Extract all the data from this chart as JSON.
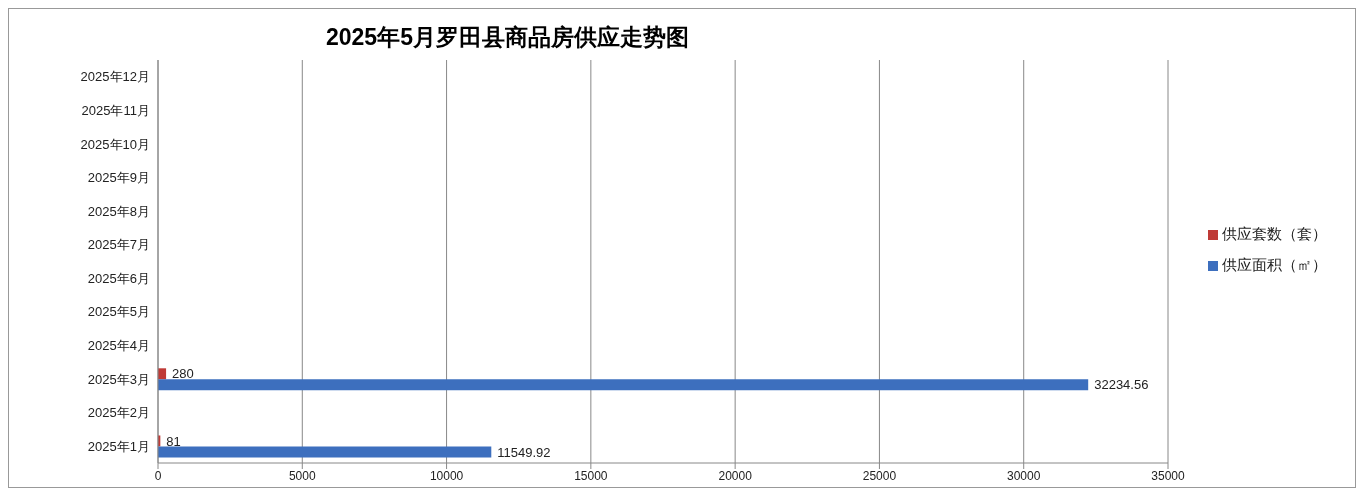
{
  "chart_data": {
    "type": "bar",
    "orientation": "horizontal",
    "title": "2025年5月罗田县商品房供应走势图",
    "categories": [
      "2025年12月",
      "2025年11月",
      "2025年10月",
      "2025年9月",
      "2025年8月",
      "2025年7月",
      "2025年6月",
      "2025年5月",
      "2025年4月",
      "2025年3月",
      "2025年2月",
      "2025年1月"
    ],
    "series": [
      {
        "name": "供应套数（套）",
        "color": "#bf3a36",
        "values": [
          null,
          null,
          null,
          null,
          null,
          null,
          null,
          null,
          null,
          280,
          null,
          81
        ]
      },
      {
        "name": "供应面积（㎡）",
        "color": "#3d6fbe",
        "values": [
          null,
          null,
          null,
          null,
          null,
          null,
          null,
          null,
          null,
          32234.56,
          null,
          11549.92
        ]
      }
    ],
    "xlim": [
      0,
      35000
    ],
    "xticks": [
      0,
      5000,
      10000,
      15000,
      20000,
      25000,
      30000,
      35000
    ],
    "grid": "x",
    "legend": "right",
    "data_labels": true
  }
}
